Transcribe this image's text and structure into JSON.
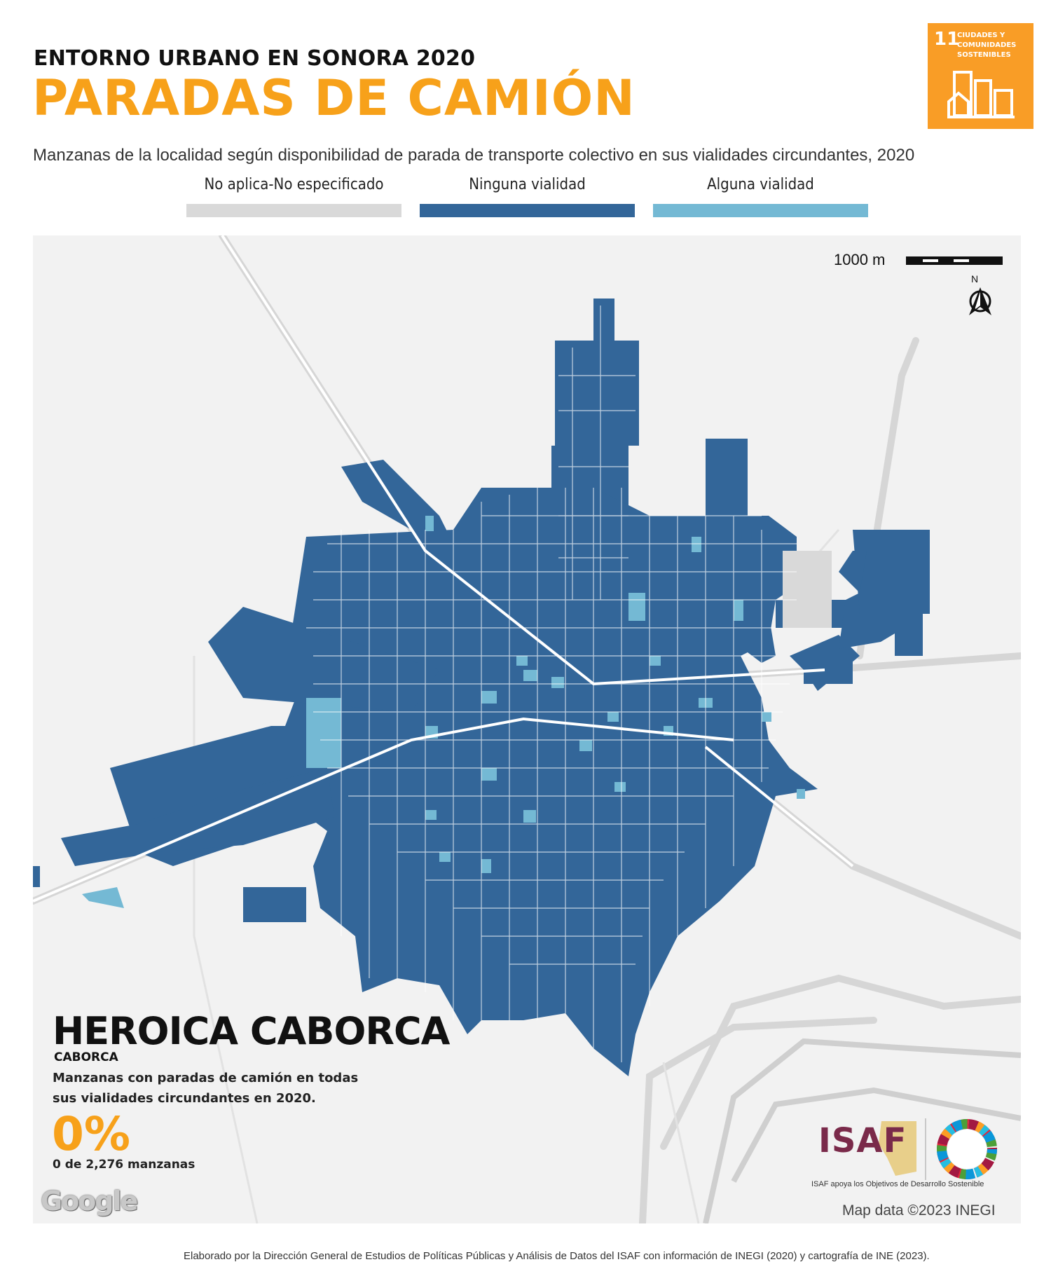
{
  "header": {
    "kicker": "ENTORNO URBANO EN SONORA 2020",
    "title": "PARADAS DE CAMIÓN",
    "subtitle": "Manzanas de la localidad según disponibilidad de parada de transporte colectivo en sus vialidades circundantes, 2020"
  },
  "legend": [
    {
      "label": "No aplica-No especificado",
      "color": "#d9d9d9"
    },
    {
      "label": "Ninguna vialidad",
      "color": "#336699"
    },
    {
      "label": "Alguna vialidad",
      "color": "#74b9d4"
    }
  ],
  "sdg": {
    "number": "11",
    "text": "CIUDADES Y COMUNIDADES SOSTENIBLES",
    "color": "#f99d26"
  },
  "map": {
    "scale_label": "1000 m",
    "north_label": "N",
    "place_name": "HEROICA CABORCA",
    "municipality": "CABORCA",
    "description": "Manzanas con paradas de camión en todas sus vialidades circundantes en 2020.",
    "percent": "0%",
    "count": "0 de 2,276 manzanas",
    "google": "Google",
    "map_data": "Map data ©2023 INEGI"
  },
  "logos": {
    "isaf": "ISAF",
    "isaf_tagline": "ISAF apoya los Objetivos de Desarrollo Sostenible"
  },
  "footer": {
    "credits": "Elaborado por la Dirección General de Estudios de Políticas Públicas y Análisis de Datos del ISAF con información de INEGI (2020) y cartografía de INE (2023)."
  }
}
